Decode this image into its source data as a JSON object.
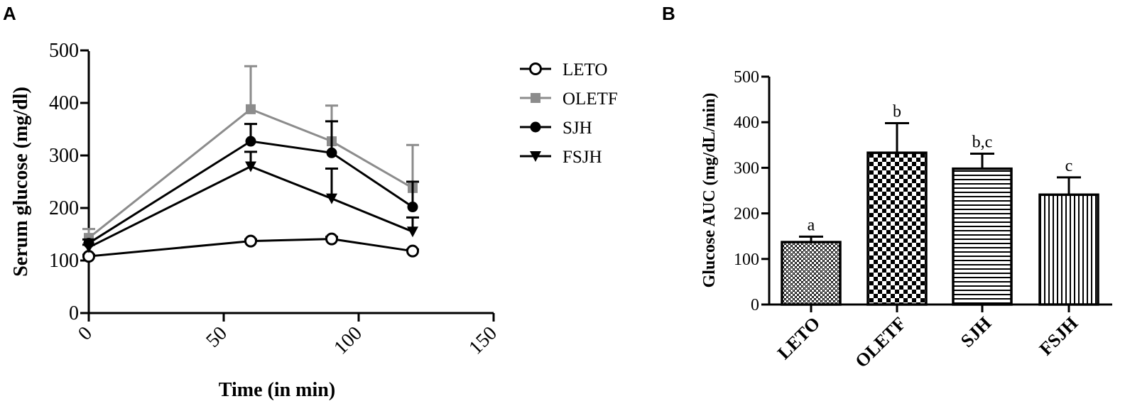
{
  "panels": {
    "a_label": "A",
    "b_label": "B"
  },
  "chart_data": [
    {
      "type": "line",
      "xlabel": "Time (in min)",
      "ylabel": "Serum glucose (mg/dl)",
      "xlim": [
        0,
        150
      ],
      "ylim": [
        0,
        500
      ],
      "xticks": [
        0,
        50,
        100,
        150
      ],
      "yticks": [
        0,
        100,
        200,
        300,
        400,
        500
      ],
      "x": [
        0,
        60,
        90,
        120
      ],
      "legend_position": "right",
      "series": [
        {
          "name": "LETO",
          "marker": "open-circle",
          "color": "#000000",
          "values": [
            108,
            137,
            141,
            118
          ],
          "errors": [
            3,
            3,
            4,
            3
          ]
        },
        {
          "name": "OLETF",
          "marker": "square",
          "color": "#8c8c8c",
          "values": [
            143,
            388,
            327,
            238
          ],
          "errors": [
            17,
            82,
            68,
            82
          ]
        },
        {
          "name": "SJH",
          "marker": "filled-circle",
          "color": "#000000",
          "values": [
            133,
            327,
            305,
            202
          ],
          "errors": [
            7,
            33,
            60,
            48
          ]
        },
        {
          "name": "FSJH",
          "marker": "triangle-down",
          "color": "#000000",
          "values": [
            125,
            279,
            218,
            155
          ],
          "errors": [
            5,
            28,
            57,
            27
          ]
        }
      ]
    },
    {
      "type": "bar",
      "ylabel": "Glucose AUC (mg/dL/min)",
      "ylim": [
        0,
        500
      ],
      "yticks": [
        0,
        100,
        200,
        300,
        400,
        500
      ],
      "categories": [
        "LETO",
        "OLETF",
        "SJH",
        "FSJH"
      ],
      "values": [
        137,
        333,
        298,
        241
      ],
      "errors": [
        12,
        65,
        33,
        38
      ],
      "annotations": [
        "a",
        "b",
        "b,c",
        "c"
      ],
      "patterns": [
        "fine-check",
        "checkerboard",
        "horizontal-lines",
        "vertical-lines"
      ]
    }
  ]
}
